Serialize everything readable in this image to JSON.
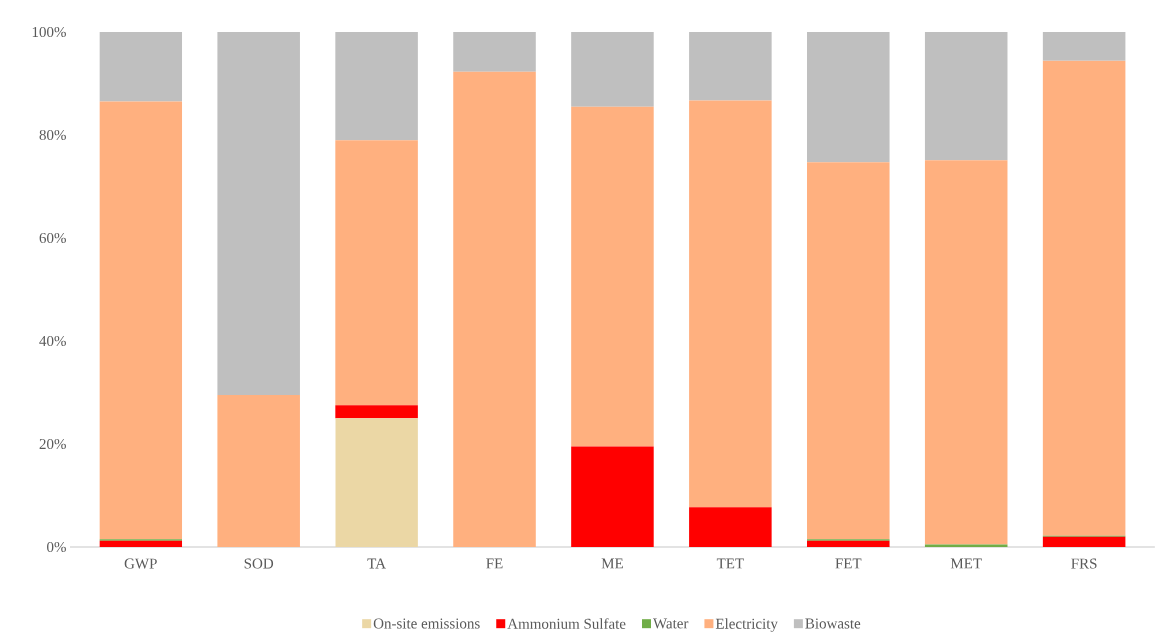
{
  "chart_data": {
    "type": "bar",
    "stacked": true,
    "categories": [
      "GWP",
      "SOD",
      "TA",
      "FE",
      "ME",
      "TET",
      "FET",
      "MET",
      "FRS"
    ],
    "series": [
      {
        "name": "On-site emissions",
        "color": "#ebd7a5",
        "values": [
          0,
          0,
          25,
          0,
          0,
          0,
          0,
          0,
          0
        ]
      },
      {
        "name": "Ammonium Sulfate",
        "color": "#ff0000",
        "values": [
          1.2,
          0,
          2.5,
          0,
          19.5,
          7.7,
          1.2,
          0,
          2
        ]
      },
      {
        "name": "Water",
        "color": "#70ad47",
        "values": [
          0.3,
          0,
          0,
          0,
          0,
          0,
          0.3,
          0.5,
          0.2
        ]
      },
      {
        "name": "Electricity",
        "color": "#ffb07f",
        "values": [
          85,
          29.5,
          51.5,
          92.3,
          66,
          79,
          73.2,
          74.6,
          92.2
        ]
      },
      {
        "name": "Biowaste",
        "color": "#bfbfbf",
        "values": [
          13.5,
          70.5,
          21,
          7.7,
          14.5,
          13.3,
          25.3,
          24.9,
          5.6
        ]
      }
    ],
    "ylim": [
      0,
      100
    ],
    "yticks": [
      {
        "value": 0,
        "label": "0%"
      },
      {
        "value": 20,
        "label": "20%"
      },
      {
        "value": 40,
        "label": "40%"
      },
      {
        "value": 60,
        "label": "60%"
      },
      {
        "value": 80,
        "label": "80%"
      },
      {
        "value": 100,
        "label": "100%"
      }
    ],
    "grid": false,
    "legend": "bottom"
  }
}
